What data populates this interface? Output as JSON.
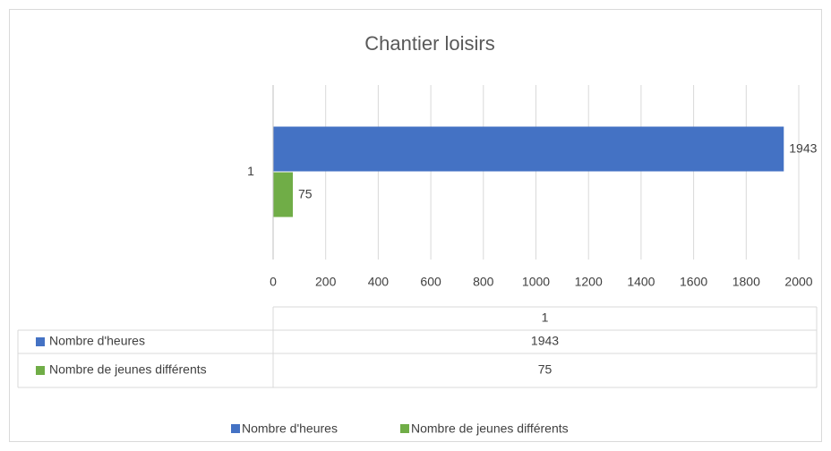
{
  "chart_data": {
    "type": "hbar",
    "title": "Chantier loisirs",
    "categories": [
      "1"
    ],
    "series": [
      {
        "name": "Nombre d'heures",
        "color": "#4472c4",
        "values": [
          1943
        ]
      },
      {
        "name": "Nombre de jeunes différents",
        "color": "#70ad47",
        "values": [
          75
        ]
      }
    ],
    "xlim": [
      0,
      2000
    ],
    "xticks": [
      0,
      200,
      400,
      600,
      800,
      1000,
      1200,
      1400,
      1600,
      1800,
      2000
    ],
    "grid": true,
    "data_table": true,
    "legend": "bottom"
  }
}
